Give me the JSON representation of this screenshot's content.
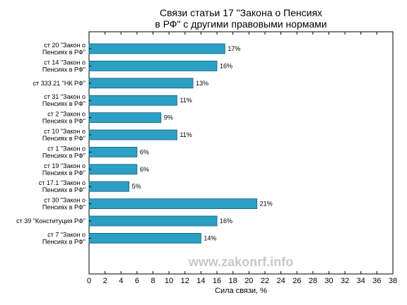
{
  "chart_data": {
    "type": "bar",
    "orientation": "horizontal",
    "title_lines": [
      "Связи статьи 17 \"Закона о Пенсиях",
      "в РФ\" с другими правовыми нормами"
    ],
    "xlabel": "Сила связи, %",
    "ylabel": "",
    "xlim": [
      0,
      38
    ],
    "xticks": [
      0,
      2,
      4,
      6,
      8,
      10,
      12,
      14,
      16,
      18,
      20,
      22,
      24,
      26,
      28,
      30,
      32,
      34,
      36,
      38
    ],
    "categories": [
      [
        "ст 20 \"Закон о",
        "Пенсиях в РФ\""
      ],
      [
        "ст 14 \"Закон о",
        "Пенсиях в РФ\""
      ],
      [
        "ст 333.21 \"НК РФ\""
      ],
      [
        "ст 31 \"Закон о",
        "Пенсиях в РФ\""
      ],
      [
        "ст 2 \"Закон о",
        "Пенсиях в РФ\""
      ],
      [
        "ст 10 \"Закон о",
        "Пенсиях в РФ\""
      ],
      [
        "ст 1 \"Закон о",
        "Пенсиях в РФ\""
      ],
      [
        "ст 19 \"Закон о",
        "Пенсиях в РФ\""
      ],
      [
        "ст 17.1 \"Закон о",
        "Пенсиях в РФ\""
      ],
      [
        "ст 30 \"Закон о",
        "Пенсиях в РФ\""
      ],
      [
        "ст 39 \"Конституция РФ\""
      ],
      [
        "ст 7 \"Закон о",
        "Пенсиях в РФ\""
      ]
    ],
    "values": [
      17,
      16,
      13,
      11,
      9,
      11,
      6,
      6,
      5,
      21,
      16,
      14
    ],
    "value_labels": [
      "17%",
      "16%",
      "13%",
      "11%",
      "9%",
      "11%",
      "6%",
      "6%",
      "5%",
      "21%",
      "16%",
      "14%"
    ],
    "bar_color": "#2b9fc4",
    "bar_edge_color": "#1a5f78",
    "grid": false,
    "legend": "none",
    "watermark": "www.zakonrf.info"
  }
}
